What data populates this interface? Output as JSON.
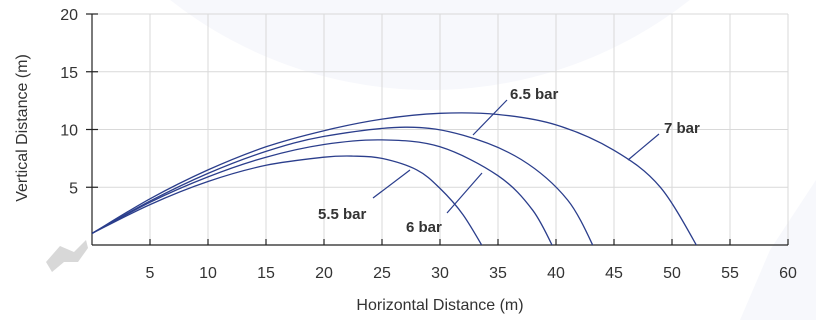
{
  "chart_data": {
    "type": "line",
    "xlabel": "Horizontal Distance (m)",
    "ylabel": "Vertical Distance (m)",
    "xlim": [
      0,
      60
    ],
    "ylim": [
      0,
      20
    ],
    "x_ticks": [
      5,
      10,
      15,
      20,
      25,
      30,
      35,
      40,
      45,
      50,
      55,
      60
    ],
    "y_ticks": [
      5,
      10,
      15,
      20
    ],
    "grid": true,
    "line_color": "#2b3e8c",
    "series": [
      {
        "name": "5.5 bar",
        "x": [
          0,
          5,
          10,
          15,
          20,
          22.5,
          25,
          28,
          30,
          32,
          34
        ],
        "y": [
          1,
          3.5,
          5.5,
          6.9,
          7.6,
          7.7,
          7.5,
          6.5,
          4.9,
          2.6,
          -0.7
        ]
      },
      {
        "name": "6 bar",
        "x": [
          0,
          5,
          10,
          15,
          20,
          25,
          30,
          35,
          38,
          40
        ],
        "y": [
          1,
          3.7,
          5.9,
          7.6,
          8.7,
          9.1,
          8.5,
          6.0,
          3.0,
          -0.7
        ]
      },
      {
        "name": "6.5 bar",
        "x": [
          0,
          5,
          10,
          15,
          20,
          27,
          32,
          37,
          41,
          43.5
        ],
        "y": [
          1,
          3.8,
          6.2,
          8.1,
          9.4,
          10.2,
          9.5,
          7.4,
          3.9,
          -0.7
        ]
      },
      {
        "name": "7 bar",
        "x": [
          0,
          5,
          10,
          15,
          20,
          25,
          30,
          35,
          40,
          45,
          49,
          52.5
        ],
        "y": [
          1,
          4.0,
          6.5,
          8.5,
          9.9,
          10.9,
          11.4,
          11.3,
          10.4,
          8.2,
          5.0,
          -0.7
        ]
      }
    ],
    "annotations": [
      {
        "text": "5.5 bar",
        "series": "5.5 bar"
      },
      {
        "text": "6 bar",
        "series": "6 bar"
      },
      {
        "text": "6.5 bar",
        "series": "6.5 bar"
      },
      {
        "text": "7 bar",
        "series": "7 bar"
      }
    ]
  }
}
